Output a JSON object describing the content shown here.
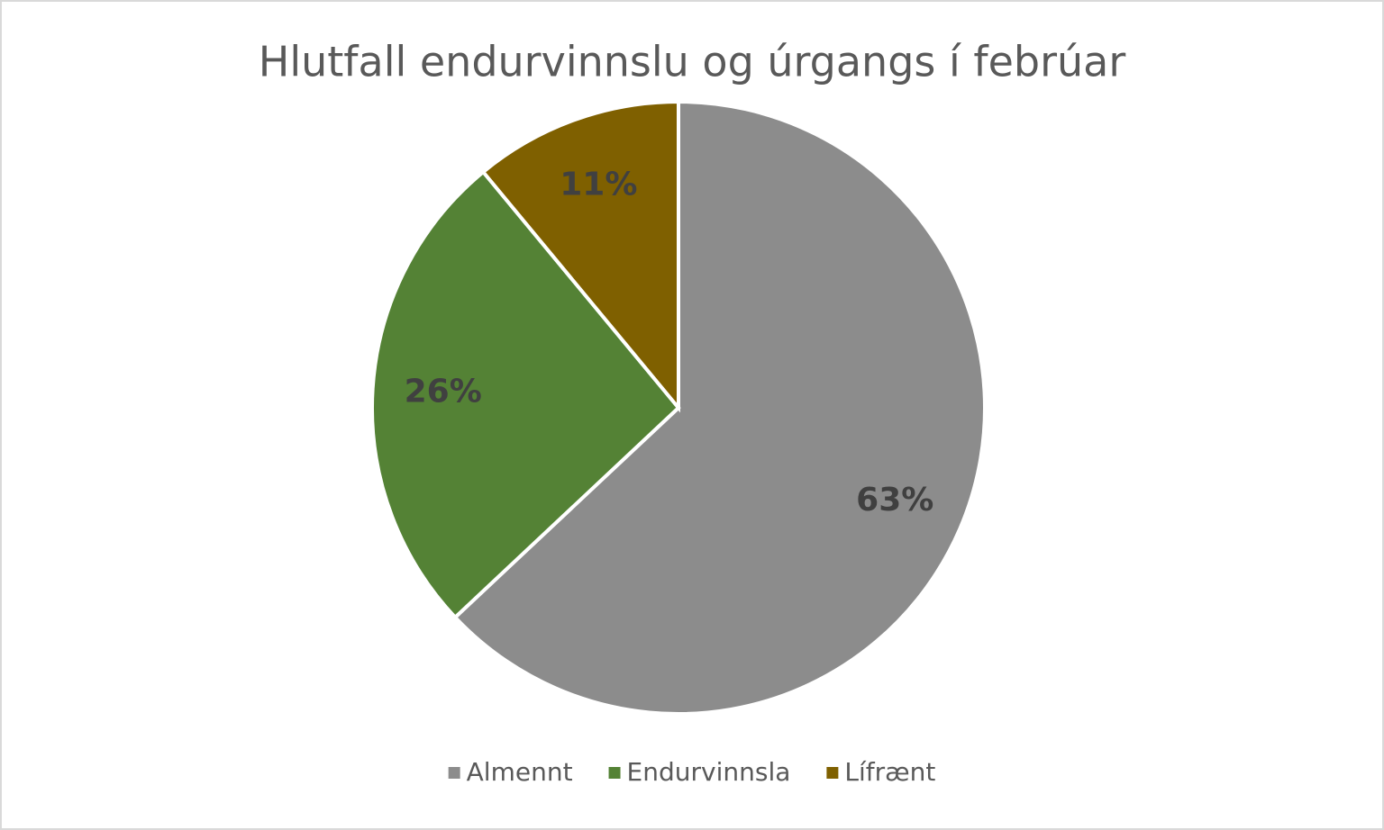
{
  "chart_data": {
    "type": "pie",
    "title": "Hlutfall endurvinnslu og úrgangs í febrúar",
    "categories": [
      "Almennt",
      "Endurvinnsla",
      "Lífrænt"
    ],
    "values": [
      63,
      26,
      11
    ],
    "value_labels": [
      "63%",
      "26%",
      "11%"
    ],
    "colors": [
      "#8c8c8c",
      "#548235",
      "#7f6000"
    ],
    "legend": "bottom"
  }
}
